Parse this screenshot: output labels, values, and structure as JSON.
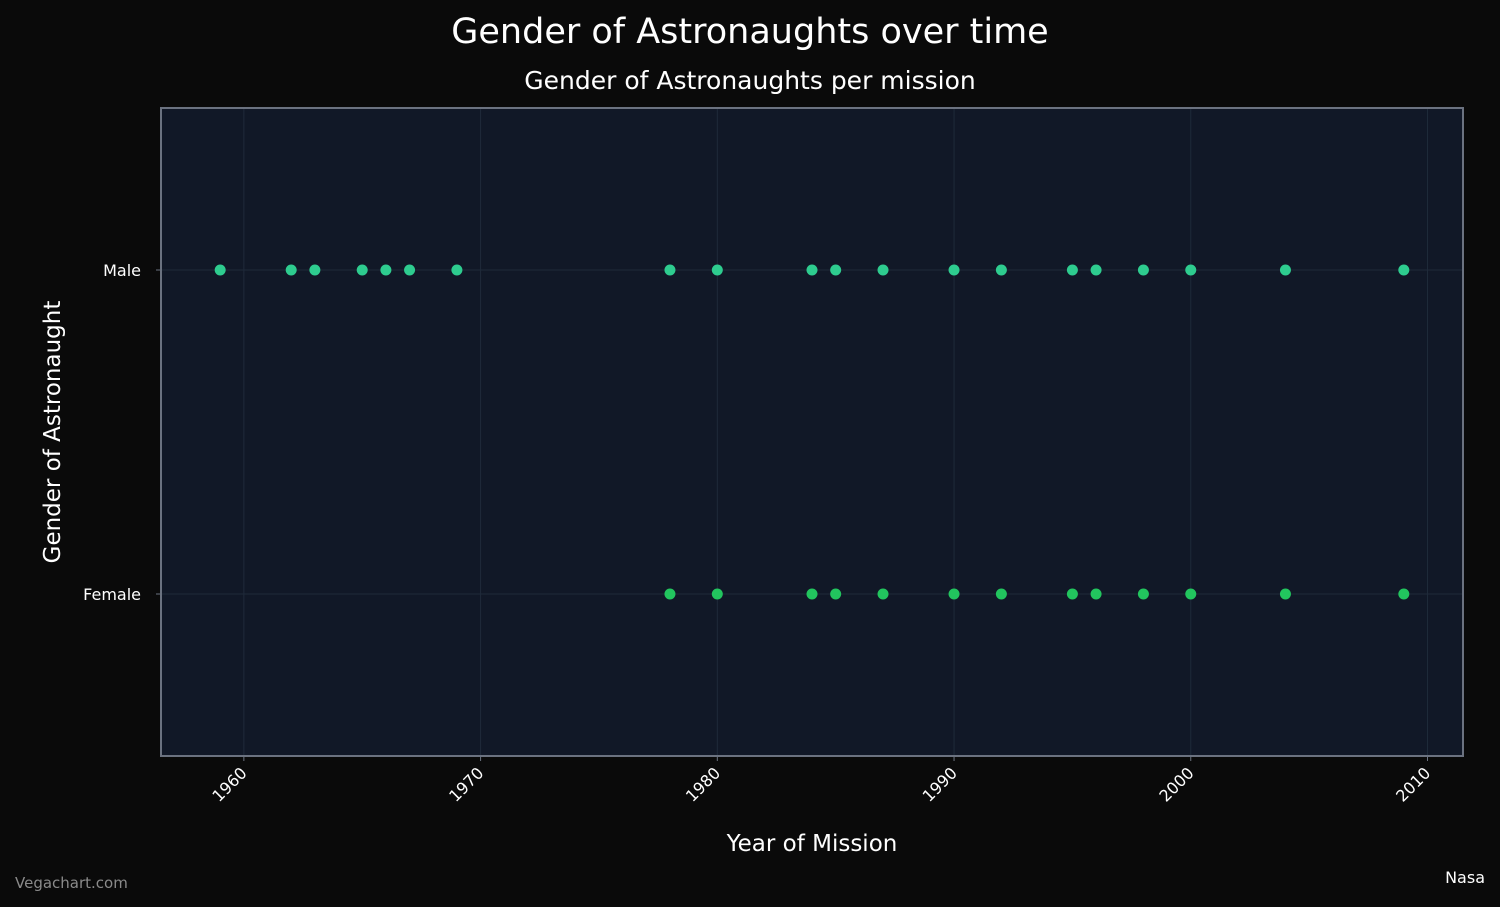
{
  "chart_data": {
    "type": "scatter",
    "title": "Gender of Astronaughts over time",
    "subtitle": "Gender of Astronaughts per mission",
    "xlabel": "Year of Mission",
    "ylabel": "Gender of Astronaught",
    "xlim": [
      1956.5,
      2011.5
    ],
    "xticks": [
      1960,
      1970,
      1980,
      1990,
      2000,
      2010
    ],
    "categories": [
      "Male",
      "Female"
    ],
    "grid": true,
    "point_color": "#2ecc8f",
    "female_point_color": "#22c55e",
    "plot_background": "#111827",
    "page_background": "#0a0a0a",
    "grid_color": "#1f2a3a",
    "frame_color": "#6b7280",
    "points": [
      {
        "x": 1959,
        "y": "Male"
      },
      {
        "x": 1962,
        "y": "Male"
      },
      {
        "x": 1963,
        "y": "Male"
      },
      {
        "x": 1965,
        "y": "Male"
      },
      {
        "x": 1966,
        "y": "Male"
      },
      {
        "x": 1967,
        "y": "Male"
      },
      {
        "x": 1969,
        "y": "Male"
      },
      {
        "x": 1978,
        "y": "Male"
      },
      {
        "x": 1980,
        "y": "Male"
      },
      {
        "x": 1984,
        "y": "Male"
      },
      {
        "x": 1985,
        "y": "Male"
      },
      {
        "x": 1987,
        "y": "Male"
      },
      {
        "x": 1990,
        "y": "Male"
      },
      {
        "x": 1992,
        "y": "Male"
      },
      {
        "x": 1995,
        "y": "Male"
      },
      {
        "x": 1996,
        "y": "Male"
      },
      {
        "x": 1998,
        "y": "Male"
      },
      {
        "x": 2000,
        "y": "Male"
      },
      {
        "x": 2004,
        "y": "Male"
      },
      {
        "x": 2009,
        "y": "Male"
      },
      {
        "x": 1978,
        "y": "Female"
      },
      {
        "x": 1980,
        "y": "Female"
      },
      {
        "x": 1984,
        "y": "Female"
      },
      {
        "x": 1985,
        "y": "Female"
      },
      {
        "x": 1987,
        "y": "Female"
      },
      {
        "x": 1990,
        "y": "Female"
      },
      {
        "x": 1992,
        "y": "Female"
      },
      {
        "x": 1995,
        "y": "Female"
      },
      {
        "x": 1996,
        "y": "Female"
      },
      {
        "x": 1998,
        "y": "Female"
      },
      {
        "x": 2000,
        "y": "Female"
      },
      {
        "x": 2004,
        "y": "Female"
      },
      {
        "x": 2009,
        "y": "Female"
      }
    ]
  },
  "footer": {
    "watermark": "Vegachart.com",
    "source": "Nasa"
  }
}
